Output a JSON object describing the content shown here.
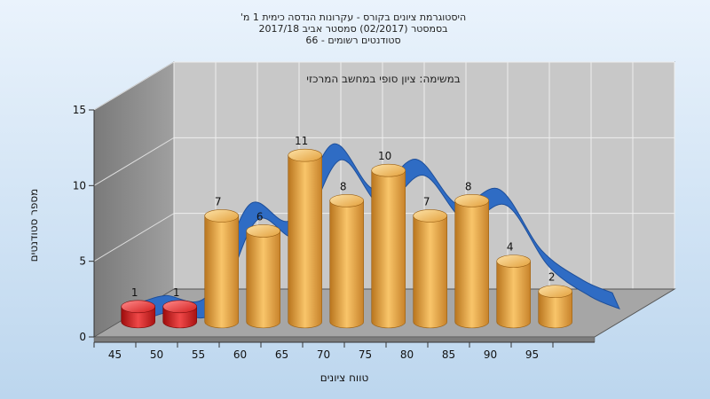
{
  "chart_data": {
    "type": "bar",
    "title_lines": [
      "היסטוגרמת ציונים בקורס - עקרונות הנדסה כימית 1 מ'",
      "בסמסטר  (02/2017)  סמסטר אביב 2017/18",
      "סטודנטים רשומים - 66"
    ],
    "annotation": "במשימה: ציון סופי במחשב המרכזי",
    "xlabel": "טווח ציונים",
    "ylabel": "מספר סטודנטים",
    "categories": [
      "45",
      "50",
      "55",
      "60",
      "65",
      "70",
      "75",
      "80",
      "85",
      "90",
      "95"
    ],
    "values": [
      1,
      1,
      7,
      6,
      11,
      8,
      10,
      7,
      8,
      4,
      2
    ],
    "failing_categories": [
      "45",
      "50"
    ],
    "ylim": [
      0,
      15
    ],
    "yticks": [
      0,
      5,
      10,
      15
    ],
    "grid": true,
    "colors": {
      "bar": "#e8a640",
      "bar_fail": "#dd1c1c",
      "ribbon": "#2f6cc4",
      "wall_back": "#c8c8c8",
      "wall_side": "#8a8a8a",
      "floor": "#a8a8a8"
    }
  }
}
